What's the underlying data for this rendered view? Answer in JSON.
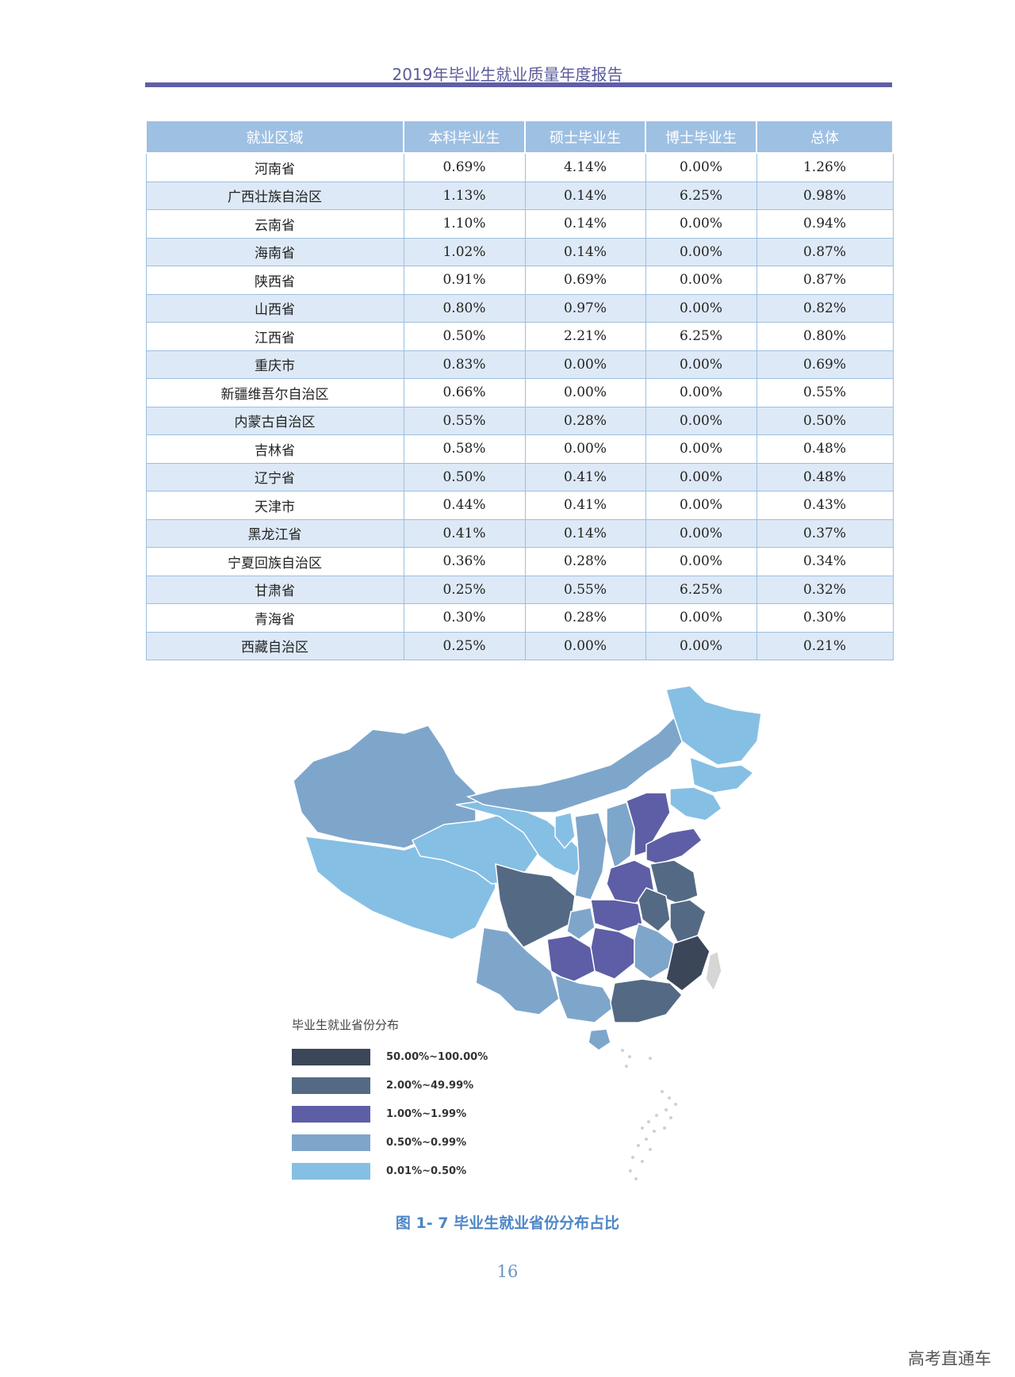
{
  "header": {
    "title": "2019年毕业生就业质量年度报告"
  },
  "table": {
    "columns": [
      "就业区域",
      "本科毕业生",
      "硕士毕业生",
      "博士毕业生",
      "总体"
    ],
    "rows": [
      [
        "河南省",
        "0.69%",
        "4.14%",
        "0.00%",
        "1.26%"
      ],
      [
        "广西壮族自治区",
        "1.13%",
        "0.14%",
        "6.25%",
        "0.98%"
      ],
      [
        "云南省",
        "1.10%",
        "0.14%",
        "0.00%",
        "0.94%"
      ],
      [
        "海南省",
        "1.02%",
        "0.14%",
        "0.00%",
        "0.87%"
      ],
      [
        "陕西省",
        "0.91%",
        "0.69%",
        "0.00%",
        "0.87%"
      ],
      [
        "山西省",
        "0.80%",
        "0.97%",
        "0.00%",
        "0.82%"
      ],
      [
        "江西省",
        "0.50%",
        "2.21%",
        "6.25%",
        "0.80%"
      ],
      [
        "重庆市",
        "0.83%",
        "0.00%",
        "0.00%",
        "0.69%"
      ],
      [
        "新疆维吾尔自治区",
        "0.66%",
        "0.00%",
        "0.00%",
        "0.55%"
      ],
      [
        "内蒙古自治区",
        "0.55%",
        "0.28%",
        "0.00%",
        "0.50%"
      ],
      [
        "吉林省",
        "0.58%",
        "0.00%",
        "0.00%",
        "0.48%"
      ],
      [
        "辽宁省",
        "0.50%",
        "0.41%",
        "0.00%",
        "0.48%"
      ],
      [
        "天津市",
        "0.44%",
        "0.41%",
        "0.00%",
        "0.43%"
      ],
      [
        "黑龙江省",
        "0.41%",
        "0.14%",
        "0.00%",
        "0.37%"
      ],
      [
        "宁夏回族自治区",
        "0.36%",
        "0.28%",
        "0.00%",
        "0.34%"
      ],
      [
        "甘肃省",
        "0.25%",
        "0.55%",
        "6.25%",
        "0.32%"
      ],
      [
        "青海省",
        "0.30%",
        "0.28%",
        "0.00%",
        "0.30%"
      ],
      [
        "西藏自治区",
        "0.25%",
        "0.00%",
        "0.00%",
        "0.21%"
      ]
    ]
  },
  "map": {
    "legend_title": "毕业生就业省份分布",
    "legend": [
      {
        "label": "50.00%~100.00%",
        "color": "#3b4658"
      },
      {
        "label": "2.00%~49.99%",
        "color": "#546a84"
      },
      {
        "label": "1.00%~1.99%",
        "color": "#5d5ea5"
      },
      {
        "label": "0.50%~0.99%",
        "color": "#7ea6cb"
      },
      {
        "label": "0.01%~0.50%",
        "color": "#86bfe4"
      }
    ]
  },
  "caption": "图 1- 7 毕业生就业省份分布占比",
  "page_number": "16",
  "watermark": "高考直通车"
}
